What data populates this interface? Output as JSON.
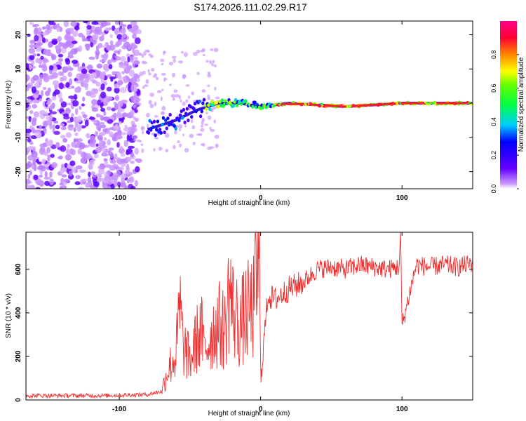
{
  "title": "S174.2026.111.02.29.R17",
  "chart_data": [
    {
      "type": "heatmap",
      "name": "spectrogram",
      "xlabel": "Height of straight line (km)",
      "ylabel": "Frequency (Hz)",
      "xlim": [
        -166,
        150
      ],
      "ylim": [
        -25,
        24
      ],
      "xticks": [
        -100,
        0,
        100
      ],
      "xtick_labels": [
        "-100",
        "0",
        "100"
      ],
      "yticks": [
        -20,
        -10,
        0,
        10,
        20
      ],
      "ytick_labels": [
        "-20",
        "-10",
        "0",
        "10",
        "20"
      ],
      "colorbar": {
        "label": "Normalized spectral amplitude",
        "range": [
          0,
          1
        ],
        "ticks": [
          0.0,
          0.2,
          0.4,
          0.6,
          0.8
        ],
        "tick_labels": [
          "0.0",
          "0.2",
          "0.4",
          "0.6",
          "0.8"
        ]
      },
      "description_points": [
        {
          "x": -75,
          "f": -7
        },
        {
          "x": -60,
          "f": -5
        },
        {
          "x": -45,
          "f": -2
        },
        {
          "x": -30,
          "f": 0
        },
        {
          "x": -15,
          "f": 0
        },
        {
          "x": 0,
          "f": -1
        },
        {
          "x": 20,
          "f": 0
        },
        {
          "x": 60,
          "f": -1
        },
        {
          "x": 100,
          "f": 0
        },
        {
          "x": 150,
          "f": 0
        }
      ]
    },
    {
      "type": "line",
      "name": "snr",
      "xlabel": "Height of straight line (km)",
      "ylabel": "SNR (10 * v/v)",
      "xlim": [
        -166,
        150
      ],
      "ylim": [
        0,
        770
      ],
      "xticks": [
        -100,
        0,
        100
      ],
      "xtick_labels": [
        "-100",
        "0",
        "100"
      ],
      "yticks": [
        0,
        200,
        400,
        600
      ],
      "ytick_labels": [
        "0",
        "200",
        "400",
        "600"
      ],
      "series": [
        {
          "name": "SNR",
          "color": "#f03030",
          "x": [
            -166,
            -140,
            -110,
            -80,
            -70,
            -65,
            -60,
            -57,
            -55,
            -50,
            -45,
            -42,
            -40,
            -35,
            -30,
            -25,
            -22,
            -20,
            -15,
            -10,
            -5,
            -1,
            0,
            5,
            10,
            20,
            30,
            40,
            50,
            60,
            70,
            80,
            90,
            98,
            99,
            100,
            110,
            120,
            130,
            140,
            150
          ],
          "y": [
            20,
            20,
            20,
            25,
            40,
            150,
            200,
            430,
            250,
            180,
            280,
            320,
            220,
            300,
            350,
            320,
            530,
            420,
            340,
            400,
            420,
            690,
            90,
            480,
            460,
            510,
            540,
            600,
            610,
            600,
            620,
            610,
            600,
            610,
            770,
            340,
            620,
            610,
            620,
            610,
            630
          ]
        }
      ]
    }
  ]
}
